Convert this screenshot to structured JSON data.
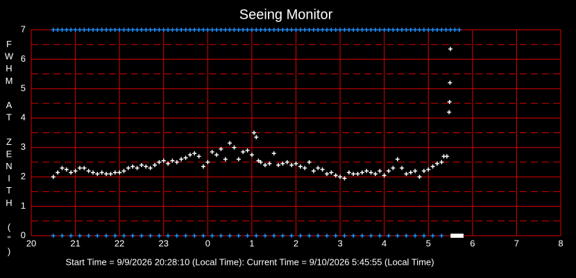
{
  "chart_data": {
    "type": "scatter",
    "title": "Seeing Monitor",
    "ylabel": "FWHM AT ZENITH (\")",
    "footer": "Start Time = 9/9/2026 20:28:10 (Local Time):  Current Time = 9/10/2026 5:45:55 (Local Time)",
    "xlim": [
      20,
      32
    ],
    "ylim": [
      0,
      7
    ],
    "xticks": [
      20,
      21,
      22,
      23,
      {
        "value": 24,
        "label": "0"
      },
      {
        "value": 25,
        "label": "1"
      },
      {
        "value": 26,
        "label": "2"
      },
      {
        "value": 27,
        "label": "3"
      },
      {
        "value": 28,
        "label": "4"
      },
      {
        "value": 29,
        "label": "5"
      },
      {
        "value": 30,
        "label": "6"
      },
      {
        "value": 31,
        "label": "7"
      },
      {
        "value": 32,
        "label": "8"
      }
    ],
    "yticks": [
      0,
      1,
      2,
      3,
      4,
      5,
      6,
      7
    ],
    "y_minor_grid": [
      0.5,
      1.5,
      2.5,
      3.5,
      4.5,
      5.5,
      6.5
    ],
    "grid": true,
    "grid_color": "#e00000",
    "background": "#000000",
    "series": [
      {
        "color": "#ffffff",
        "marker": "plus",
        "x": [
          20.5,
          20.6,
          20.7,
          20.8,
          20.9,
          21.0,
          21.1,
          21.2,
          21.3,
          21.4,
          21.5,
          21.6,
          21.7,
          21.8,
          21.9,
          22.0,
          22.1,
          22.2,
          22.3,
          22.4,
          22.5,
          22.6,
          22.7,
          22.8,
          22.9,
          23.0,
          23.1,
          23.2,
          23.3,
          23.4,
          23.5,
          23.6,
          23.7,
          23.8,
          23.9,
          24.0,
          24.1,
          24.2,
          24.3,
          24.4,
          24.5,
          24.6,
          24.7,
          24.8,
          24.9,
          25.0,
          25.05,
          25.1,
          25.15,
          25.2,
          25.3,
          25.4,
          25.5,
          25.6,
          25.7,
          25.8,
          25.9,
          26.0,
          26.1,
          26.2,
          26.3,
          26.4,
          26.5,
          26.6,
          26.7,
          26.8,
          26.9,
          27.0,
          27.1,
          27.2,
          27.3,
          27.4,
          27.5,
          27.6,
          27.7,
          27.8,
          27.9,
          28.0,
          28.1,
          28.2,
          28.3,
          28.4,
          28.5,
          28.6,
          28.7,
          28.8,
          28.9,
          29.0,
          29.1,
          29.2,
          29.3,
          29.35,
          29.42,
          29.47,
          29.48,
          29.49,
          29.5
        ],
        "values": [
          2.0,
          2.15,
          2.3,
          2.25,
          2.15,
          2.2,
          2.3,
          2.3,
          2.2,
          2.15,
          2.1,
          2.15,
          2.1,
          2.1,
          2.15,
          2.15,
          2.2,
          2.3,
          2.35,
          2.3,
          2.4,
          2.35,
          2.3,
          2.4,
          2.5,
          2.55,
          2.45,
          2.55,
          2.5,
          2.6,
          2.65,
          2.75,
          2.8,
          2.7,
          2.35,
          2.5,
          2.85,
          2.75,
          2.95,
          2.6,
          3.15,
          3.0,
          2.6,
          2.85,
          2.9,
          2.75,
          3.5,
          3.35,
          2.55,
          2.5,
          2.4,
          2.45,
          2.8,
          2.4,
          2.45,
          2.5,
          2.4,
          2.45,
          2.35,
          2.3,
          2.5,
          2.2,
          2.3,
          2.25,
          2.1,
          2.15,
          2.05,
          2.0,
          1.95,
          2.15,
          2.1,
          2.1,
          2.15,
          2.2,
          2.15,
          2.1,
          2.2,
          2.05,
          2.2,
          2.3,
          2.6,
          2.3,
          2.1,
          2.15,
          2.2,
          2.0,
          2.2,
          2.25,
          2.35,
          2.45,
          2.5,
          2.7,
          2.7,
          4.2,
          4.55,
          5.2,
          6.35
        ]
      },
      {
        "color": "#1e90ff",
        "marker": "plus",
        "x": [
          20.5,
          20.6,
          20.7,
          20.8,
          20.9,
          21.0,
          21.1,
          21.2,
          21.3,
          21.4,
          21.5,
          21.6,
          21.7,
          21.8,
          21.9,
          22.0,
          22.1,
          22.2,
          22.3,
          22.4,
          22.5,
          22.6,
          22.7,
          22.8,
          22.9,
          23.0,
          23.1,
          23.2,
          23.3,
          23.4,
          23.5,
          23.6,
          23.7,
          23.8,
          23.9,
          24.0,
          24.1,
          24.2,
          24.3,
          24.4,
          24.5,
          24.6,
          24.7,
          24.8,
          24.9,
          25.0,
          25.1,
          25.2,
          25.3,
          25.4,
          25.5,
          25.6,
          25.7,
          25.8,
          25.9,
          26.0,
          26.1,
          26.2,
          26.3,
          26.4,
          26.5,
          26.6,
          26.7,
          26.8,
          26.9,
          27.0,
          27.1,
          27.2,
          27.3,
          27.4,
          27.5,
          27.6,
          27.7,
          27.8,
          27.9,
          28.0,
          28.1,
          28.2,
          28.3,
          28.4,
          28.5,
          28.6,
          28.7,
          28.8,
          28.9,
          29.0,
          29.1,
          29.2,
          29.3,
          29.4,
          29.5,
          29.6,
          29.7
        ],
        "values": [
          7,
          7,
          7,
          7,
          7,
          7,
          7,
          7,
          7,
          7,
          7,
          7,
          7,
          7,
          7,
          7,
          7,
          7,
          7,
          7,
          7,
          7,
          7,
          7,
          7,
          7,
          7,
          7,
          7,
          7,
          7,
          7,
          7,
          7,
          7,
          7,
          7,
          7,
          7,
          7,
          7,
          7,
          7,
          7,
          7,
          7,
          7,
          7,
          7,
          7,
          7,
          7,
          7,
          7,
          7,
          7,
          7,
          7,
          7,
          7,
          7,
          7,
          7,
          7,
          7,
          7,
          7,
          7,
          7,
          7,
          7,
          7,
          7,
          7,
          7,
          7,
          7,
          7,
          7,
          7,
          7,
          7,
          7,
          7,
          7,
          7,
          7,
          7,
          7,
          7,
          7,
          7,
          7
        ]
      },
      {
        "color": "#1e90ff",
        "marker": "plus",
        "x": [
          20.5,
          20.7,
          20.9,
          21.1,
          21.3,
          21.5,
          21.7,
          21.9,
          22.1,
          22.3,
          22.5,
          22.7,
          22.9,
          23.1,
          23.3,
          23.5,
          23.7,
          23.9,
          24.1,
          24.3,
          24.5,
          24.7,
          24.9,
          25.1,
          25.3,
          25.5,
          25.7,
          25.9,
          26.1,
          26.3,
          26.5,
          26.7,
          26.9,
          27.1,
          27.3,
          27.5,
          27.7,
          27.9,
          28.1,
          28.3,
          28.5,
          28.7,
          28.9,
          29.1,
          29.3
        ],
        "values": [
          0,
          0,
          0,
          0,
          0,
          0,
          0,
          0,
          0,
          0,
          0,
          0,
          0,
          0,
          0,
          0,
          0,
          0,
          0,
          0,
          0,
          0,
          0,
          0,
          0,
          0,
          0,
          0,
          0,
          0,
          0,
          0,
          0,
          0,
          0,
          0,
          0,
          0,
          0,
          0,
          0,
          0,
          0,
          0,
          0
        ]
      },
      {
        "color": "#ffffff",
        "marker": "square",
        "x": [
          29.55,
          29.6,
          29.65,
          29.7,
          29.75
        ],
        "values": [
          0,
          0,
          0,
          0,
          0
        ]
      }
    ]
  }
}
